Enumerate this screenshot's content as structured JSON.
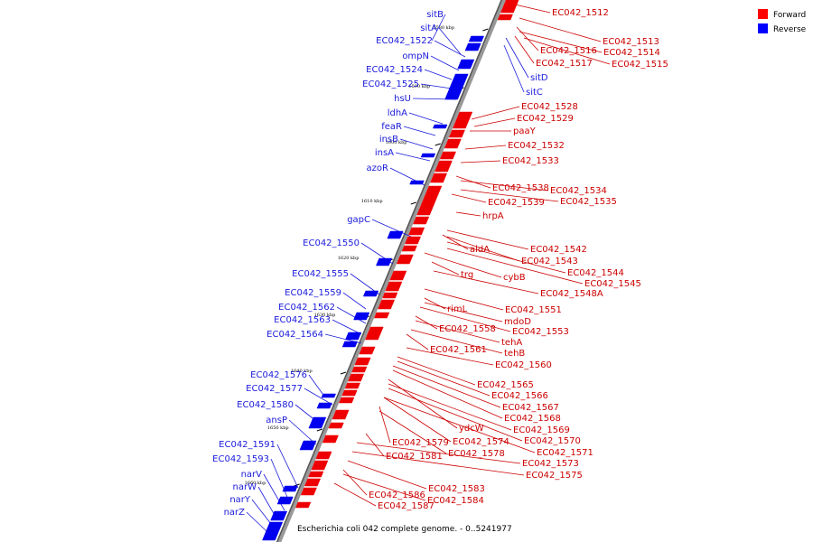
{
  "title": "Escherichia coli 042 complete genome. - 0..5241977",
  "legend": {
    "forward": {
      "label": "Forward",
      "color": "#ff0000"
    },
    "reverse": {
      "label": "Reverse",
      "color": "#0000ff"
    }
  },
  "ticks": [
    "1580 kbp",
    "1590 kbp",
    "1600 kbp",
    "1610 kbp",
    "1620 kbp",
    "1630 kbp",
    "1640 kbp",
    "1650 kbp",
    "1660 kbp"
  ],
  "reverse_genes": [
    "sitB",
    "sitA",
    "EC042_1522",
    "ompN",
    "EC042_1524",
    "EC042_1525",
    "hsU",
    "ldhA",
    "feaR",
    "insB",
    "insA",
    "azoR",
    "gapC",
    "EC042_1550",
    "EC042_1555",
    "EC042_1559",
    "EC042_1562",
    "EC042_1563",
    "EC042_1564",
    "EC042_1576",
    "EC042_1577",
    "EC042_1580",
    "ansP",
    "EC042_1591",
    "EC042_1593",
    "narV",
    "narW",
    "narY",
    "narZ"
  ],
  "reverse_right_genes": [
    "sitD",
    "sitC"
  ],
  "forward_genes": [
    "EC042_1512",
    "EC042_1513",
    "EC042_1516",
    "EC042_1514",
    "EC042_1517",
    "EC042_1515",
    "EC042_1528",
    "EC042_1529",
    "paaY",
    "EC042_1532",
    "EC042_1533",
    "EC042_1538",
    "EC042_1534",
    "EC042_1539",
    "EC042_1535",
    "hrpA",
    "aldA",
    "EC042_1542",
    "EC042_1543",
    "EC042_1544",
    "EC042_1545",
    "trg",
    "cybB",
    "EC042_1548A",
    "rimL",
    "EC042_1551",
    "mdoD",
    "EC042_1558",
    "EC042_1553",
    "tehA",
    "EC042_1561",
    "tehB",
    "EC042_1560",
    "EC042_1565",
    "EC042_1566",
    "EC042_1567",
    "EC042_1568",
    "ydcW",
    "EC042_1569",
    "EC042_1579",
    "EC042_1574",
    "EC042_1570",
    "EC042_1581",
    "EC042_1578",
    "EC042_1571",
    "EC042_1573",
    "EC042_1575",
    "EC042_1583",
    "EC042_1586",
    "EC042_1584",
    "EC042_1587"
  ]
}
